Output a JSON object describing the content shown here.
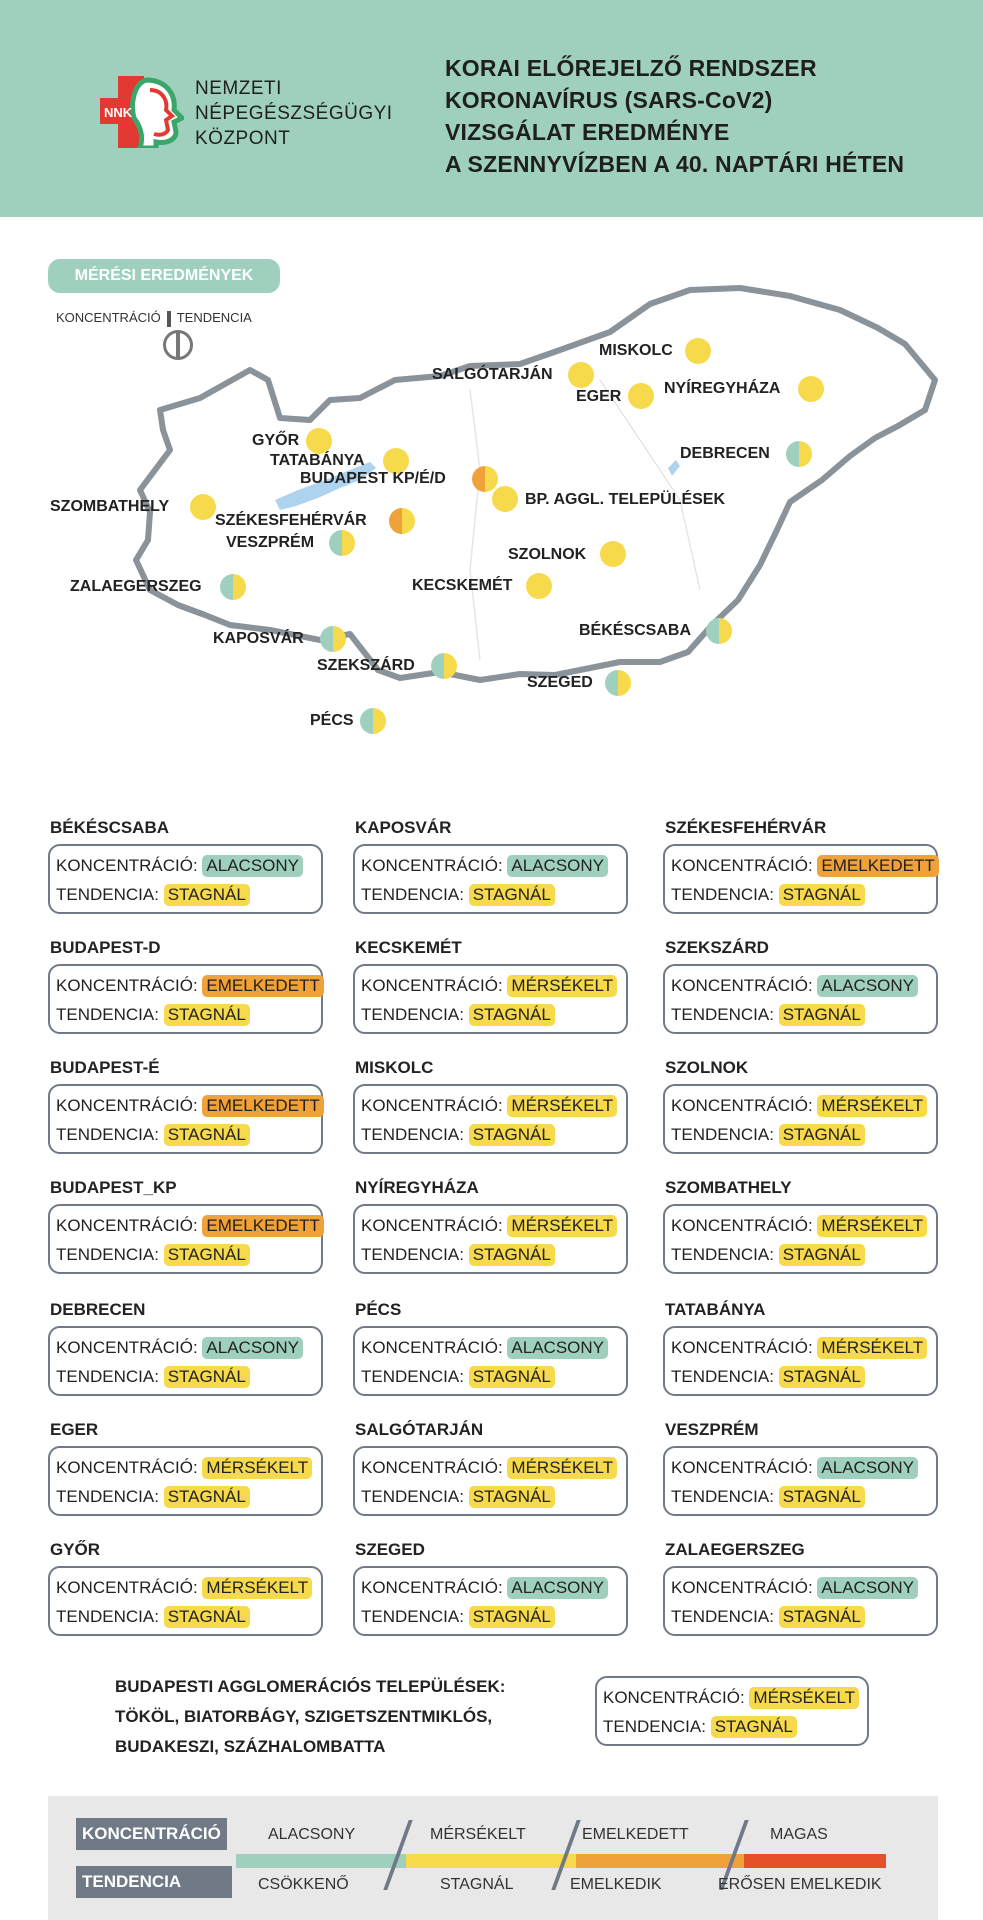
{
  "header": {
    "org_lines": [
      "NEMZETI",
      "NÉPEGÉSZSÉGÜGYI",
      "KÖZPONT"
    ],
    "logo_text": "NNK",
    "title_lines": [
      "KORAI ELŐREJELZŐ RENDSZER",
      "KORONAVÍRUS (SARS-CoV2)",
      "VIZSGÁLAT EREDMÉNYE",
      "A SZENNYVÍZBEN A 40. NAPTÁRI HÉTEN"
    ]
  },
  "legend_pill": "MÉRÉSI EREDMÉNYEK",
  "mini_legend": {
    "left": "KONCENTRÁCIÓ",
    "right": "TENDENCIA"
  },
  "colors": {
    "header_bg": "#9fd0bd",
    "alacsony": "#9fd0bd",
    "mersekelt": "#f7d94c",
    "emelkedett": "#f0a23a",
    "magas": "#e5502b",
    "stagnal": "#f7d94c",
    "border": "#6f7a86"
  },
  "map": {
    "labels": {
      "miskolc": "MISKOLC",
      "salgotarjan": "SALGÓTARJÁN",
      "eger": "EGER",
      "nyiregyhaza": "NYÍREGYHÁZA",
      "gyor": "GYŐR",
      "tatabanya": "TATABÁNYA",
      "budapest": "BUDAPEST KP/É/D",
      "debrecen": "DEBRECEN",
      "szombathely": "SZOMBATHELY",
      "bp_aggl": "BP. AGGL. TELEPÜLÉSEK",
      "szekesfehervar": "SZÉKESFEHÉRVÁR",
      "veszprem": "VESZPRÉM",
      "szolnok": "SZOLNOK",
      "zalaegerszeg": "ZALAEGERSZEG",
      "kecskemet": "KECSKEMÉT",
      "bekescsaba": "BÉKÉSCSABA",
      "kaposvar": "KAPOSVÁR",
      "szekszard": "SZEKSZÁRD",
      "szeged": "SZEGED",
      "pecs": "PÉCS"
    }
  },
  "labels": {
    "koncentracio": "KONCENTRÁCIÓ:",
    "tendencia": "TENDENCIA:"
  },
  "cards": [
    {
      "name": "BÉKÉSCSABA",
      "konc": "ALACSONY",
      "tend": "STAGNÁL"
    },
    {
      "name": "KAPOSVÁR",
      "konc": "ALACSONY",
      "tend": "STAGNÁL"
    },
    {
      "name": "SZÉKESFEHÉRVÁR",
      "konc": "EMELKEDETT",
      "tend": "STAGNÁL"
    },
    {
      "name": "BUDAPEST-D",
      "konc": "EMELKEDETT",
      "tend": "STAGNÁL"
    },
    {
      "name": "KECSKEMÉT",
      "konc": "MÉRSÉKELT",
      "tend": "STAGNÁL"
    },
    {
      "name": "SZEKSZÁRD",
      "konc": "ALACSONY",
      "tend": "STAGNÁL"
    },
    {
      "name": "BUDAPEST-É",
      "konc": "EMELKEDETT",
      "tend": "STAGNÁL"
    },
    {
      "name": "MISKOLC",
      "konc": "MÉRSÉKELT",
      "tend": "STAGNÁL"
    },
    {
      "name": "SZOLNOK",
      "konc": "MÉRSÉKELT",
      "tend": "STAGNÁL"
    },
    {
      "name": "BUDAPEST_KP",
      "konc": "EMELKEDETT",
      "tend": "STAGNÁL"
    },
    {
      "name": "NYÍREGYHÁZA",
      "konc": "MÉRSÉKELT",
      "tend": "STAGNÁL"
    },
    {
      "name": "SZOMBATHELY",
      "konc": "MÉRSÉKELT",
      "tend": "STAGNÁL"
    },
    {
      "name": "DEBRECEN",
      "konc": "ALACSONY",
      "tend": "STAGNÁL"
    },
    {
      "name": "PÉCS",
      "konc": "ALACSONY",
      "tend": "STAGNÁL"
    },
    {
      "name": "TATABÁNYA",
      "konc": "MÉRSÉKELT",
      "tend": "STAGNÁL"
    },
    {
      "name": "EGER",
      "konc": "MÉRSÉKELT",
      "tend": "STAGNÁL"
    },
    {
      "name": "SALGÓTARJÁN",
      "konc": "MÉRSÉKELT",
      "tend": "STAGNÁL"
    },
    {
      "name": "VESZPRÉM",
      "konc": "ALACSONY",
      "tend": "STAGNÁL"
    },
    {
      "name": "GYŐR",
      "konc": "MÉRSÉKELT",
      "tend": "STAGNÁL"
    },
    {
      "name": "SZEGED",
      "konc": "ALACSONY",
      "tend": "STAGNÁL"
    },
    {
      "name": "ZALAEGERSZEG",
      "konc": "ALACSONY",
      "tend": "STAGNÁL"
    }
  ],
  "agglomeration": {
    "title_lines": [
      "BUDAPESTI AGGLOMERÁCIÓS TELEPÜLÉSEK:",
      "TÖKÖL, BIATORBÁGY, SZIGETSZENTMIKLÓS,",
      "BUDAKESZI, SZÁZHALOMBATTA"
    ],
    "konc": "MÉRSÉKELT",
    "tend": "STAGNÁL"
  },
  "legend": {
    "koncentracio_label": "KONCENTRÁCIÓ",
    "tendencia_label": "TENDENCIA",
    "levels": [
      "ALACSONY",
      "MÉRSÉKELT",
      "EMELKEDETT",
      "MAGAS"
    ],
    "trends": [
      "CSÖKKENŐ",
      "STAGNÁL",
      "EMELKEDIK",
      "ERŐSEN EMELKEDIK"
    ]
  }
}
